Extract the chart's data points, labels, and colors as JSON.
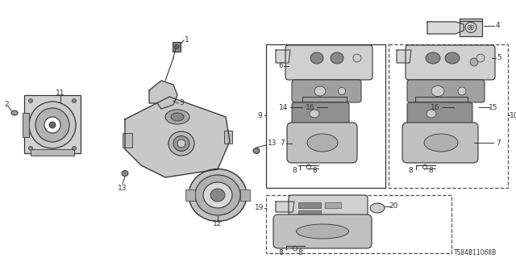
{
  "bg_color": "#ffffff",
  "line_color": "#333333",
  "part_number": "TS84B11068B",
  "gray_fill": "#aaaaaa",
  "dark_fill": "#555555",
  "light_fill": "#dddddd",
  "mid_fill": "#888888"
}
